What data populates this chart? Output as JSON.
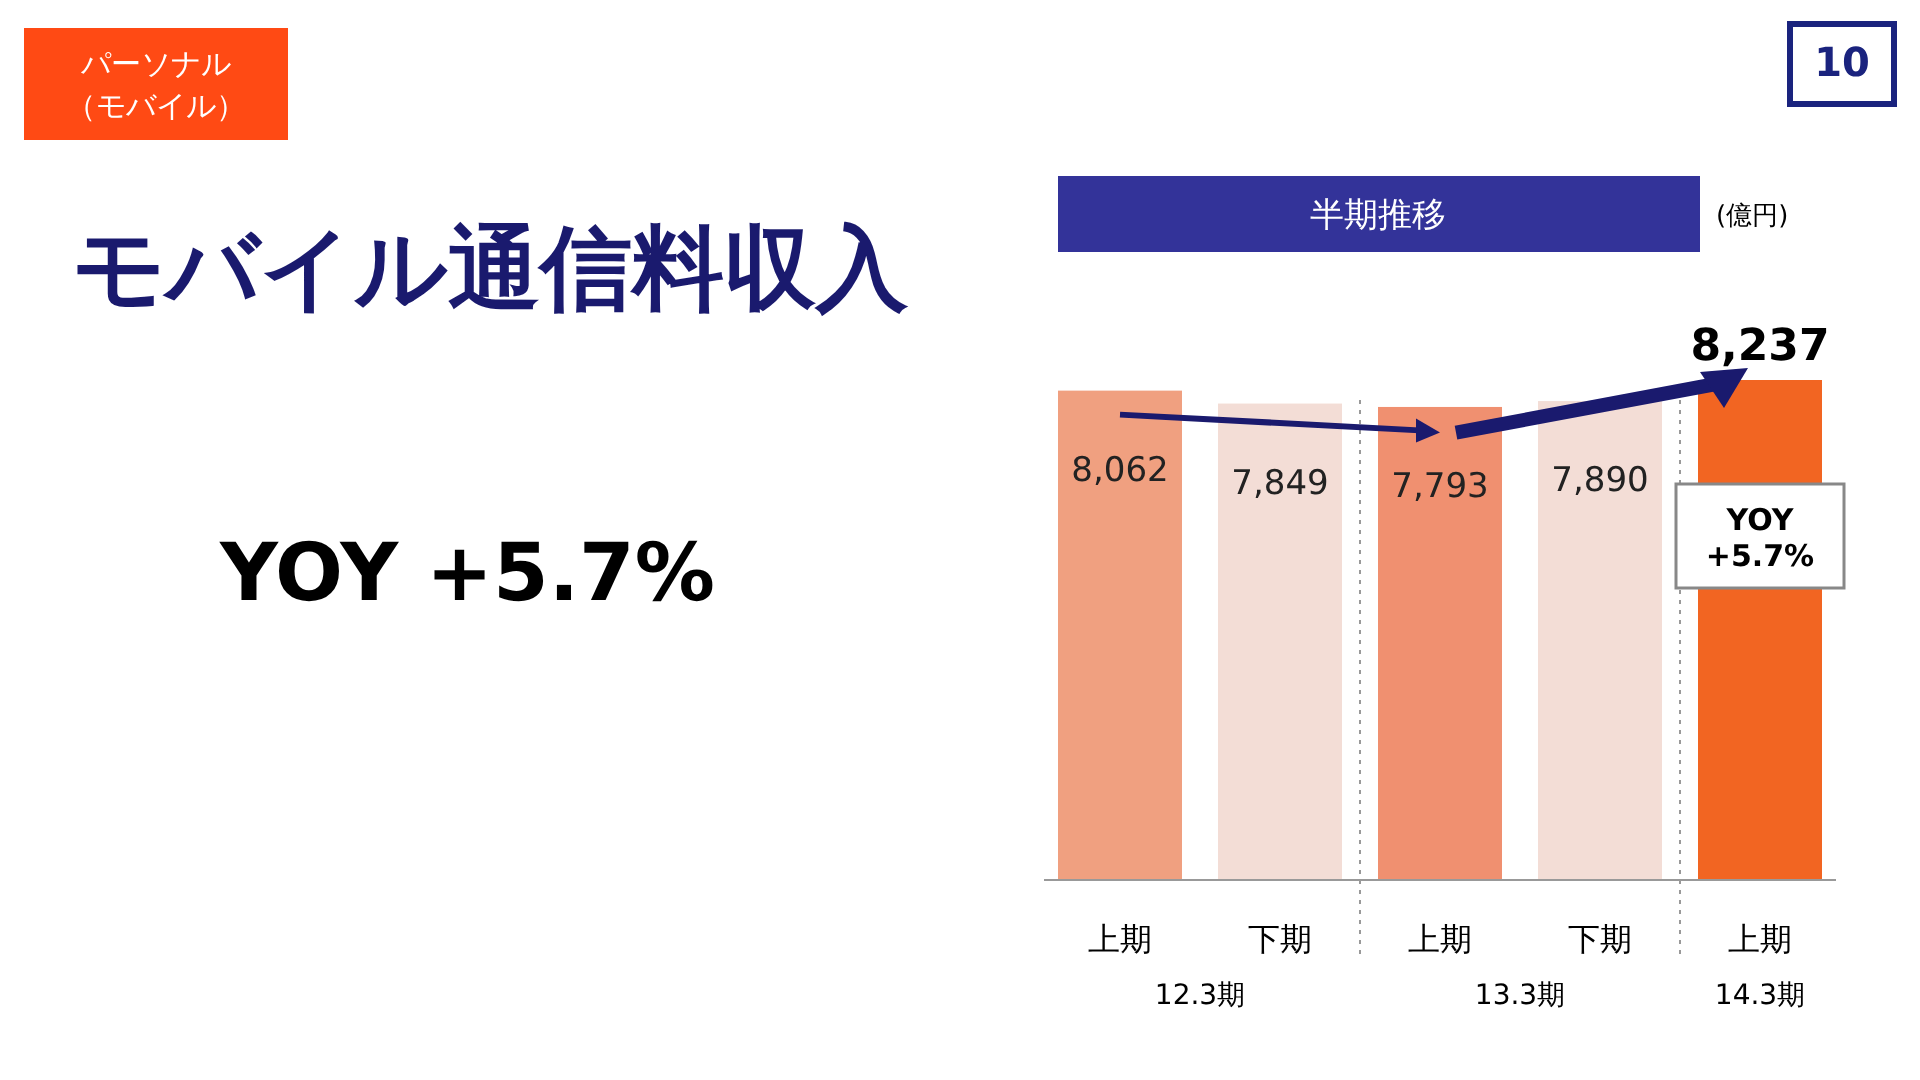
{
  "chart_data": {
    "type": "bar",
    "title": "モバイル通信料収入",
    "subtitle": "半期推移",
    "categories": [
      "上期",
      "下期",
      "上期",
      "下期",
      "上期"
    ],
    "values": [
      8062,
      7849,
      7793,
      7890,
      8237
    ],
    "colors": [
      "#f0a080",
      "#f3ddd6",
      "#f09070",
      "#f3ddd6",
      "#f26522"
    ],
    "value_labels": [
      "8,062",
      "7,849",
      "7,793",
      "7,890",
      "8,237"
    ],
    "annotations": [
      "パーソナル",
      "（モバイル）",
      "10",
      "YOY +5.7%",
      "(億円)",
      "YOY\n+5.7%",
      "12.3期",
      "13.3期",
      "14.3期"
    ]
  }
}
